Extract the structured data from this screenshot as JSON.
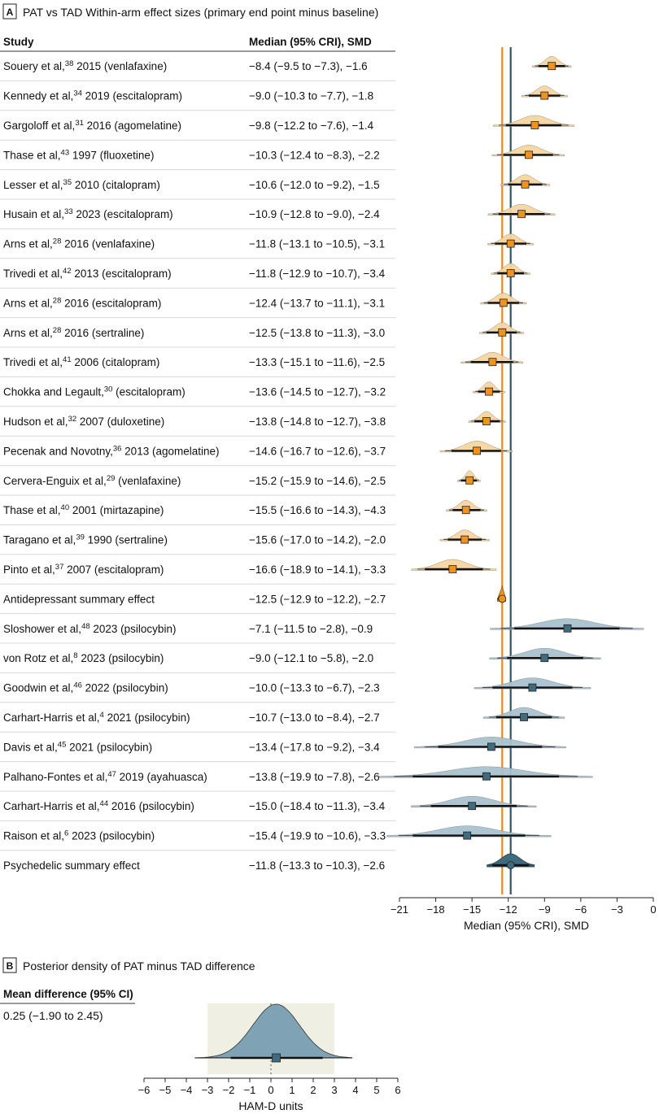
{
  "panel_a": {
    "letter": "A",
    "title": "PAT vs TAD Within-arm effect sizes (primary end point minus baseline)",
    "col_study": "Study",
    "col_value": "Median (95% CRI), SMD"
  },
  "panel_b": {
    "letter": "B",
    "title": "Posterior density of PAT minus TAD difference",
    "col_header": "Mean difference (95% CI)",
    "value": "0.25 (−1.90 to 2.45)"
  },
  "colors": {
    "tad_fill": "#f7d6a0",
    "tad_marker": "#f0921e",
    "tad_line": "#e8891a",
    "pat_fill": "#a9c2cf",
    "pat_marker": "#3f6b7c",
    "pat_line": "#2f5462",
    "diff_fill": "#7fa3b4",
    "diff_bg": "#efefe4"
  },
  "chart_data": [
    {
      "type": "forest",
      "title": "PAT vs TAD Within-arm effect sizes (primary end point minus baseline)",
      "xlabel": "Median (95% CRI), SMD",
      "xlim": [
        -21,
        0
      ],
      "xticks": [
        -21,
        -18,
        -15,
        -12,
        -9,
        -6,
        -3,
        0
      ],
      "reference_lines": [
        {
          "name": "Antidepressant summary effect",
          "x": -12.5
        },
        {
          "name": "Psychedelic summary effect",
          "x": -11.8
        }
      ],
      "rows": [
        {
          "pre": "Souery et al,",
          "ref": "38",
          "post": " 2015 (venlafaxine)",
          "value": "−8.4 (−9.5 to −7.3), −1.6",
          "median": -8.4,
          "lo": -9.5,
          "hi": -7.3,
          "group": "TAD"
        },
        {
          "pre": "Kennedy et al,",
          "ref": "34",
          "post": " 2019 (escitalopram)",
          "value": "−9.0 (−10.3 to −7.7), −1.8",
          "median": -9.0,
          "lo": -10.3,
          "hi": -7.7,
          "group": "TAD"
        },
        {
          "pre": "Gargoloff et al,",
          "ref": "31",
          "post": " 2016 (agomelatine)",
          "value": "−9.8 (−12.2 to −7.6), −1.4",
          "median": -9.8,
          "lo": -12.2,
          "hi": -7.6,
          "group": "TAD"
        },
        {
          "pre": "Thase et al,",
          "ref": "43",
          "post": " 1997 (fluoxetine)",
          "value": "−10.3 (−12.4 to −8.3), −2.2",
          "median": -10.3,
          "lo": -12.4,
          "hi": -8.3,
          "group": "TAD"
        },
        {
          "pre": "Lesser et al,",
          "ref": "35",
          "post": " 2010 (citalopram)",
          "value": "−10.6 (−12.0 to −9.2), −1.5",
          "median": -10.6,
          "lo": -12.0,
          "hi": -9.2,
          "group": "TAD"
        },
        {
          "pre": "Husain et al,",
          "ref": "33",
          "post": " 2023 (escitalopram)",
          "value": "−10.9 (−12.8 to −9.0), −2.4",
          "median": -10.9,
          "lo": -12.8,
          "hi": -9.0,
          "group": "TAD"
        },
        {
          "pre": "Arns et al,",
          "ref": "28",
          "post": " 2016 (venlafaxine)",
          "value": "−11.8 (−13.1 to −10.5), −3.1",
          "median": -11.8,
          "lo": -13.1,
          "hi": -10.5,
          "group": "TAD"
        },
        {
          "pre": "Trivedi et al,",
          "ref": "42",
          "post": " 2013 (escitalopram)",
          "value": "−11.8 (−12.9 to −10.7), −3.4",
          "median": -11.8,
          "lo": -12.9,
          "hi": -10.7,
          "group": "TAD"
        },
        {
          "pre": "Arns et al,",
          "ref": "28",
          "post": " 2016 (escitalopram)",
          "value": "−12.4 (−13.7 to −11.1), −3.1",
          "median": -12.4,
          "lo": -13.7,
          "hi": -11.1,
          "group": "TAD"
        },
        {
          "pre": "Arns et al,",
          "ref": "28",
          "post": " 2016 (sertraline)",
          "value": "−12.5 (−13.8 to −11.3), −3.0",
          "median": -12.5,
          "lo": -13.8,
          "hi": -11.3,
          "group": "TAD"
        },
        {
          "pre": "Trivedi et al,",
          "ref": "41",
          "post": " 2006 (citalopram)",
          "value": "−13.3 (−15.1 to −11.6), −2.5",
          "median": -13.3,
          "lo": -15.1,
          "hi": -11.6,
          "group": "TAD"
        },
        {
          "pre": "Chokka and Legault,",
          "ref": "30",
          "post": " (escitalopram)",
          "value": "−13.6 (−14.5 to −12.7), −3.2",
          "median": -13.6,
          "lo": -14.5,
          "hi": -12.7,
          "group": "TAD"
        },
        {
          "pre": "Hudson et al,",
          "ref": "32",
          "post": " 2007 (duloxetine)",
          "value": "−13.8 (−14.8 to −12.7), −3.8",
          "median": -13.8,
          "lo": -14.8,
          "hi": -12.7,
          "group": "TAD"
        },
        {
          "pre": "Pecenak and Novotny,",
          "ref": "36",
          "post": " 2013 (agomelatine)",
          "value": "−14.6 (−16.7 to −12.6), −3.7",
          "median": -14.6,
          "lo": -16.7,
          "hi": -12.6,
          "group": "TAD"
        },
        {
          "pre": "Cervera-Enguix et al,",
          "ref": "29",
          "post": " (venlafaxine)",
          "value": "−15.2 (−15.9 to −14.6), −2.5",
          "median": -15.2,
          "lo": -15.9,
          "hi": -14.6,
          "group": "TAD"
        },
        {
          "pre": "Thase et al,",
          "ref": "40",
          "post": " 2001 (mirtazapine)",
          "value": "−15.5 (−16.6 to −14.3), −4.3",
          "median": -15.5,
          "lo": -16.6,
          "hi": -14.3,
          "group": "TAD"
        },
        {
          "pre": "Taragano et al,",
          "ref": "39",
          "post": " 1990 (sertraline)",
          "value": "−15.6 (−17.0 to −14.2), −2.0",
          "median": -15.6,
          "lo": -17.0,
          "hi": -14.2,
          "group": "TAD"
        },
        {
          "pre": "Pinto et al,",
          "ref": "37",
          "post": " 2007 (escitalopram)",
          "value": "−16.6 (−18.9 to −14.1), −3.3",
          "median": -16.6,
          "lo": -18.9,
          "hi": -14.1,
          "group": "TAD"
        },
        {
          "pre": "Antidepressant summary effect",
          "ref": "",
          "post": "",
          "value": "−12.5 (−12.9 to −12.2), −2.7",
          "median": -12.5,
          "lo": -12.9,
          "hi": -12.2,
          "group": "TAD",
          "summary": true
        },
        {
          "pre": "Sloshower et al,",
          "ref": "48",
          "post": " 2023 (psilocybin)",
          "value": "−7.1 (−11.5 to −2.8), −0.9",
          "median": -7.1,
          "lo": -11.5,
          "hi": -2.8,
          "group": "PAT"
        },
        {
          "pre": "von Rotz et al,",
          "ref": "8",
          "post": " 2023 (psilocybin)",
          "value": "−9.0 (−12.1 to −5.8), −2.0",
          "median": -9.0,
          "lo": -12.1,
          "hi": -5.8,
          "group": "PAT"
        },
        {
          "pre": "Goodwin et al,",
          "ref": "46",
          "post": " 2022 (psilocybin)",
          "value": "−10.0 (−13.3 to −6.7), −2.3",
          "median": -10.0,
          "lo": -13.3,
          "hi": -6.7,
          "group": "PAT"
        },
        {
          "pre": "Carhart-Harris et al,",
          "ref": "4",
          "post": " 2021 (psilocybin)",
          "value": "−10.7 (−13.0 to −8.4), −2.7",
          "median": -10.7,
          "lo": -13.0,
          "hi": -8.4,
          "group": "PAT"
        },
        {
          "pre": "Davis et al,",
          "ref": "45",
          "post": " 2021 (psilocybin)",
          "value": "−13.4 (−17.8 to −9.2), −3.4",
          "median": -13.4,
          "lo": -17.8,
          "hi": -9.2,
          "group": "PAT"
        },
        {
          "pre": "Palhano-Fontes et al,",
          "ref": "47",
          "post": " 2019 (ayahuasca)",
          "value": "−13.8 (−19.9 to −7.8), −2.6",
          "median": -13.8,
          "lo": -19.9,
          "hi": -7.8,
          "group": "PAT"
        },
        {
          "pre": "Carhart-Harris et al,",
          "ref": "44",
          "post": " 2016 (psilocybin)",
          "value": "−15.0 (−18.4 to −11.3), −3.4",
          "median": -15.0,
          "lo": -18.4,
          "hi": -11.3,
          "group": "PAT"
        },
        {
          "pre": "Raison et al,",
          "ref": "6",
          "post": " 2023 (psilocybin)",
          "value": "−15.4 (−19.9 to −10.6), −3.3",
          "median": -15.4,
          "lo": -19.9,
          "hi": -10.6,
          "group": "PAT"
        },
        {
          "pre": "Psychedelic summary effect",
          "ref": "",
          "post": "",
          "value": "−11.8 (−13.3 to −10.3), −2.6",
          "median": -11.8,
          "lo": -13.3,
          "hi": -10.3,
          "group": "PAT",
          "summary": true
        }
      ]
    },
    {
      "type": "density",
      "title": "Posterior density of PAT minus TAD difference",
      "xlabel": "HAM-D units",
      "xlim": [
        -6,
        6
      ],
      "xticks": [
        -6,
        -5,
        -4,
        -3,
        -2,
        -1,
        0,
        1,
        2,
        3,
        4,
        5,
        6
      ],
      "mean": 0.25,
      "ci": [
        -1.9,
        2.45
      ],
      "shaded_range": [
        -3,
        3
      ],
      "reference_x": 0
    }
  ]
}
